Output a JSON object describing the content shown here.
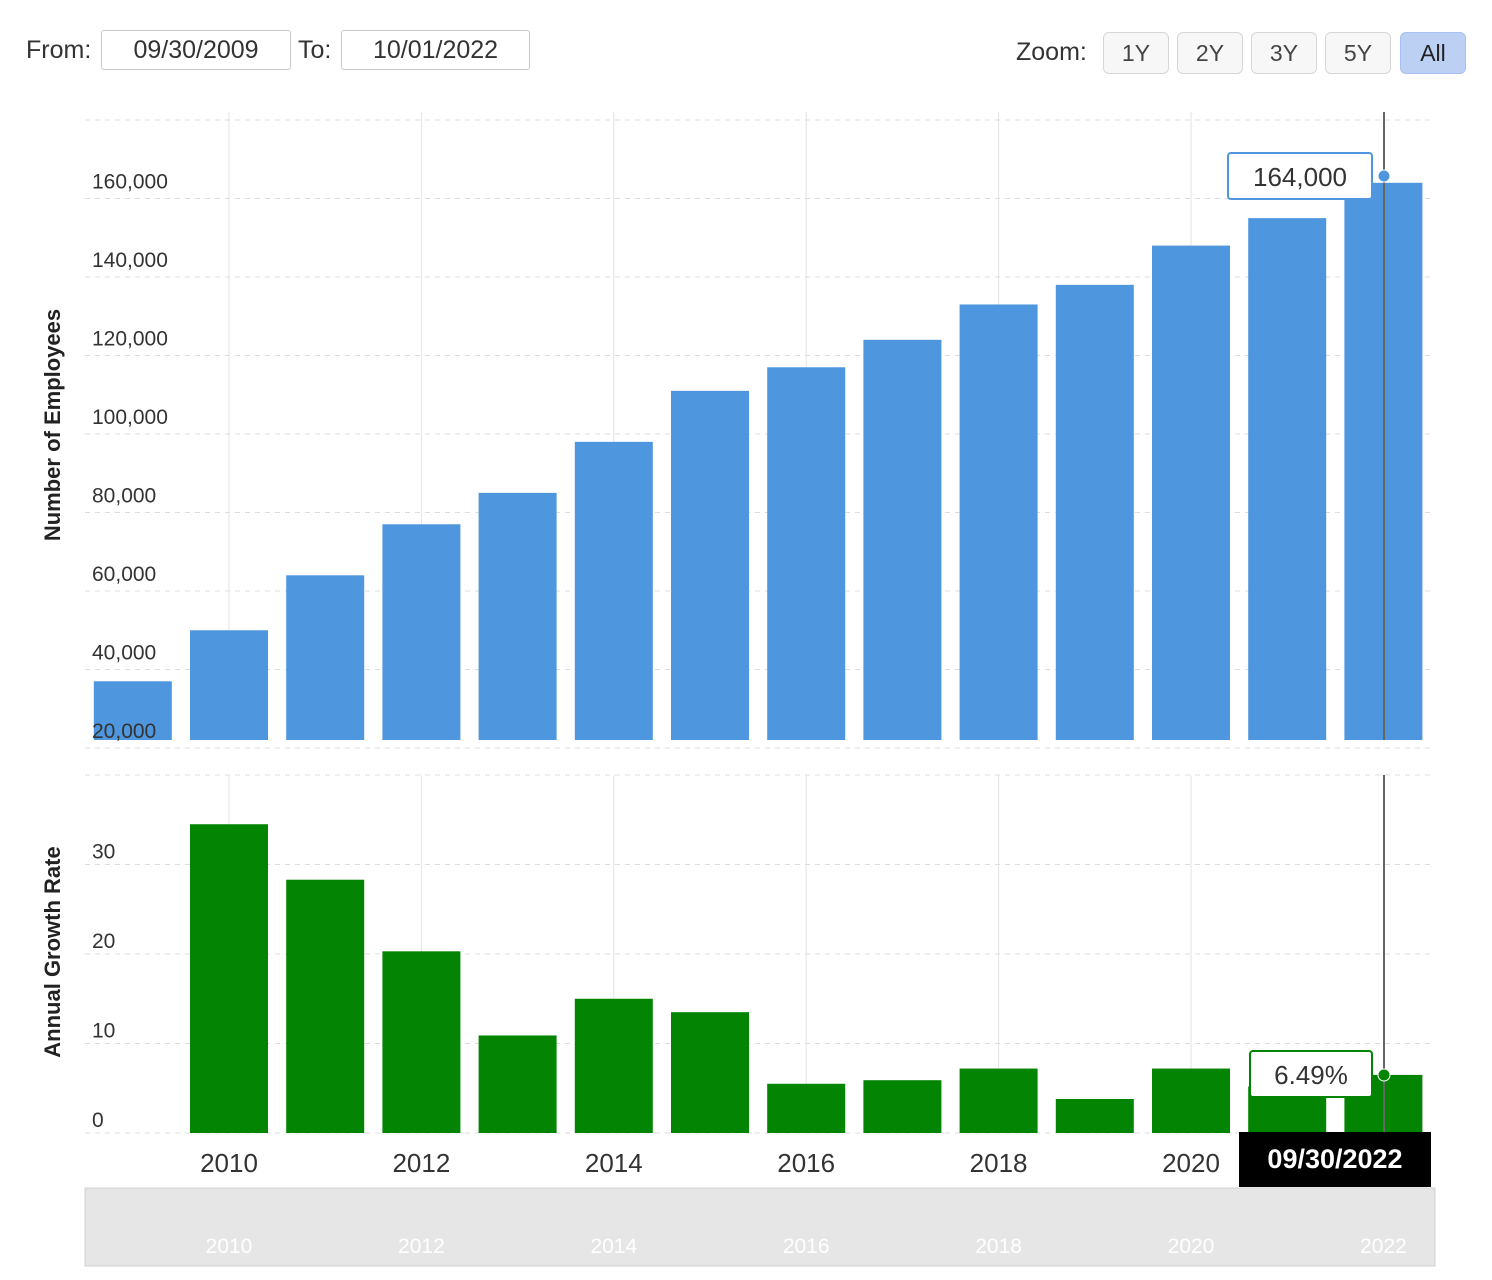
{
  "range": {
    "from_label": "From:",
    "from_value": "09/30/2009",
    "to_label": "To:",
    "to_value": "10/01/2022"
  },
  "zoom": {
    "label": "Zoom:",
    "buttons": [
      "1Y",
      "2Y",
      "3Y",
      "5Y",
      "All"
    ],
    "active": "All"
  },
  "tooltip": {
    "employees": "164,000",
    "growth": "6.49%",
    "date": "09/30/2022"
  },
  "colors": {
    "employees_bar": "#4e96dd",
    "growth_bar": "#038503",
    "zoom_active": "#bcd0f4"
  },
  "navigator": {
    "labels": [
      "2010",
      "2012",
      "2014",
      "2016",
      "2018",
      "2020",
      "2022"
    ]
  },
  "chart_data": [
    {
      "type": "bar",
      "ylabel": "Number of Employees",
      "xlabel": "",
      "categories": [
        "2009",
        "2010",
        "2011",
        "2012",
        "2013",
        "2014",
        "2015",
        "2016",
        "2017",
        "2018",
        "2019",
        "2020",
        "2021",
        "2022"
      ],
      "values": [
        37000,
        50000,
        64000,
        77000,
        85000,
        98000,
        111000,
        117000,
        124000,
        133000,
        138000,
        148000,
        155000,
        164000
      ],
      "ylim": [
        20000,
        180000
      ],
      "yticks": [
        20000,
        40000,
        60000,
        80000,
        100000,
        120000,
        140000,
        160000
      ],
      "ytick_labels": [
        "20,000",
        "40,000",
        "60,000",
        "80,000",
        "100,000",
        "120,000",
        "140,000",
        "160,000"
      ],
      "grid": true
    },
    {
      "type": "bar",
      "ylabel": "Annual Growth Rate",
      "xlabel": "",
      "categories": [
        "2010",
        "2011",
        "2012",
        "2013",
        "2014",
        "2015",
        "2016",
        "2017",
        "2018",
        "2019",
        "2020",
        "2021",
        "2022"
      ],
      "values": [
        34.5,
        28.3,
        20.3,
        10.9,
        15.0,
        13.5,
        5.5,
        5.9,
        7.2,
        3.8,
        7.2,
        5.2,
        6.49
      ],
      "ylim": [
        0,
        40
      ],
      "yticks": [
        0,
        10,
        20,
        30
      ],
      "ytick_labels": [
        "0",
        "10",
        "20",
        "30"
      ],
      "xtick_labels": [
        "2010",
        "2012",
        "2014",
        "2016",
        "2018",
        "2020"
      ],
      "grid": true
    }
  ]
}
